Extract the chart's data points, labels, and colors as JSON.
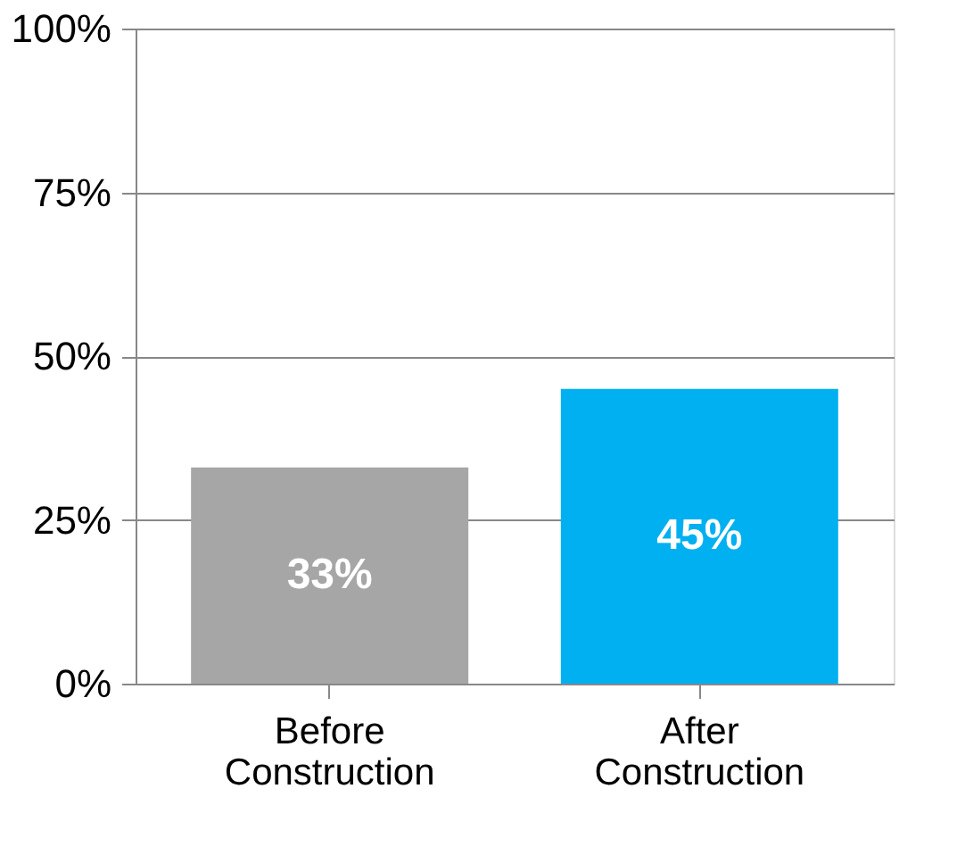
{
  "chart_data": {
    "type": "bar",
    "categories": [
      "Before Construction",
      "After Construction"
    ],
    "values": [
      33,
      45
    ],
    "colors": [
      "#a6a6a6",
      "#00b0f0"
    ],
    "value_labels": [
      "33%",
      "45%"
    ],
    "ylim": [
      0,
      100
    ],
    "yticks": [
      {
        "value": 0,
        "label": "0%"
      },
      {
        "value": 25,
        "label": "25%"
      },
      {
        "value": 50,
        "label": "50%"
      },
      {
        "value": 75,
        "label": "75%"
      },
      {
        "value": 100,
        "label": "100%"
      }
    ],
    "grid": "y"
  }
}
